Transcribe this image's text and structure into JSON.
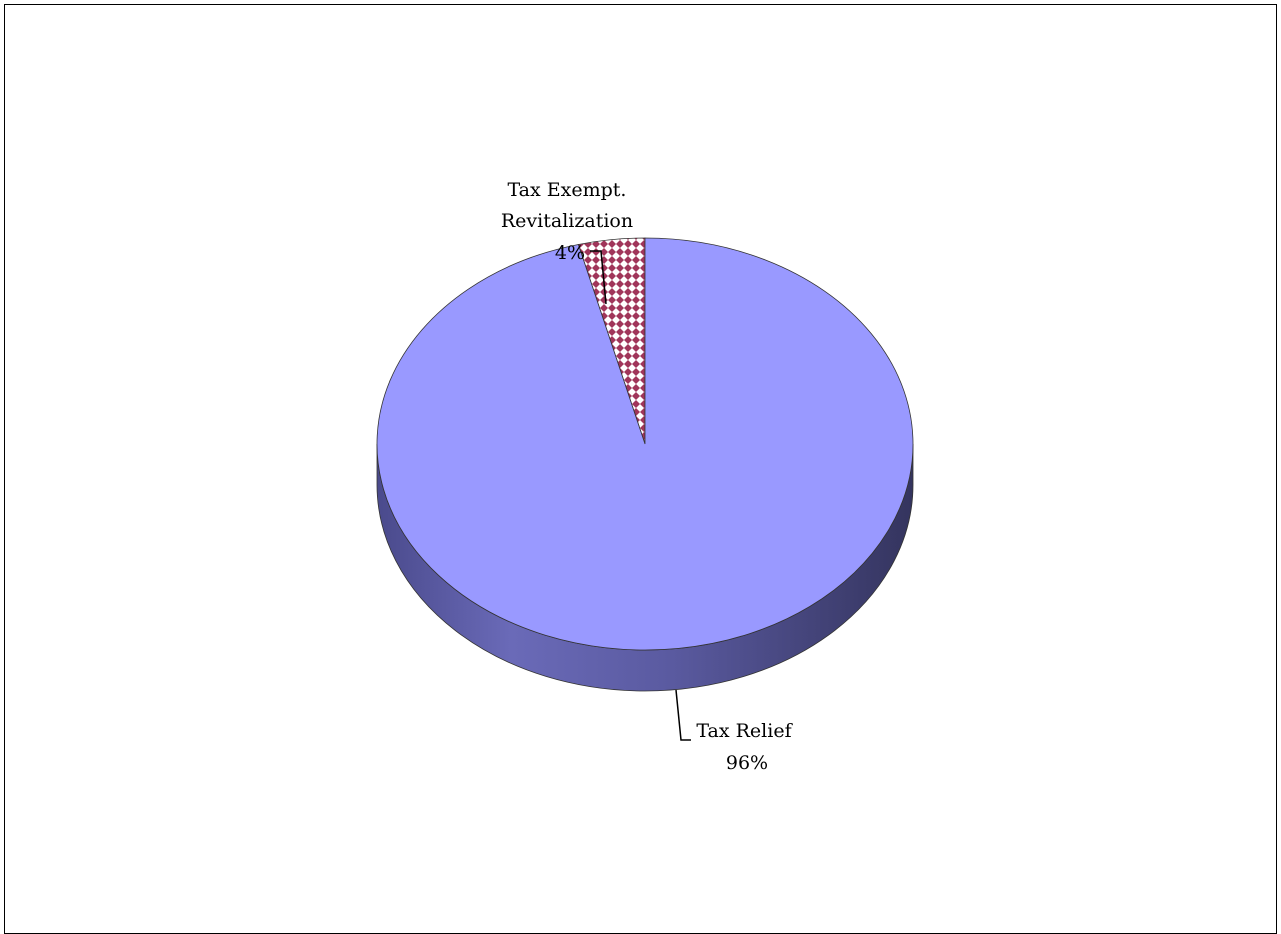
{
  "chart_data": {
    "type": "pie",
    "style": "3d",
    "slices": [
      {
        "label_lines": [
          "Tax Exempt.",
          "Revitalization"
        ],
        "percent_label": "4%",
        "value": 4,
        "color": "#b5405e",
        "pattern": "diamond-hatch"
      },
      {
        "label_lines": [
          "Tax Relief"
        ],
        "percent_label": "96%",
        "value": 96,
        "color": "#9999ff",
        "pattern": "solid"
      }
    ],
    "start_angle_deg": -90,
    "legend": "none"
  },
  "colors": {
    "relief_top": "#9999ff",
    "relief_side": "#5c5ca6",
    "revit_fg": "#9b3a55",
    "revit_bg": "#ffffff",
    "outline": "#333333"
  }
}
